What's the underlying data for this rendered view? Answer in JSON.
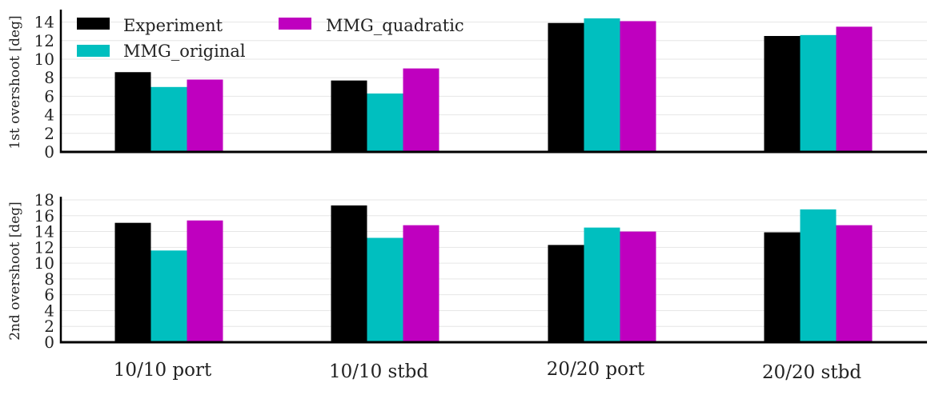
{
  "chart_data": [
    {
      "type": "bar",
      "categories": [
        "10/10 port",
        "10/10 stbd",
        "20/20 port",
        "20/20 stbd"
      ],
      "ylabel": "1st overshoot [deg]",
      "ylim": [
        0,
        15
      ],
      "yticks": [
        0,
        2,
        4,
        6,
        8,
        10,
        12,
        14
      ],
      "grid": true,
      "legend": "top-left",
      "series": [
        {
          "name": "Experiment",
          "color": "#000000",
          "values": [
            8.6,
            7.7,
            13.9,
            12.5
          ]
        },
        {
          "name": "MMG_original",
          "color": "#00bfbf",
          "values": [
            7.0,
            6.3,
            14.4,
            12.6
          ]
        },
        {
          "name": "MMG_quadratic",
          "color": "#bf00bf",
          "values": [
            7.8,
            9.0,
            14.1,
            13.5
          ]
        }
      ]
    },
    {
      "type": "bar",
      "categories": [
        "10/10 port",
        "10/10 stbd",
        "20/20 port",
        "20/20 stbd"
      ],
      "ylabel": "2nd overshoot [deg]",
      "ylim": [
        0,
        18
      ],
      "yticks": [
        0,
        2,
        4,
        6,
        8,
        10,
        12,
        14,
        16,
        18
      ],
      "grid": true,
      "series": [
        {
          "name": "Experiment",
          "color": "#000000",
          "values": [
            15.1,
            17.3,
            12.3,
            13.9
          ]
        },
        {
          "name": "MMG_original",
          "color": "#00bfbf",
          "values": [
            11.6,
            13.2,
            14.5,
            16.8
          ]
        },
        {
          "name": "MMG_quadratic",
          "color": "#bf00bf",
          "values": [
            15.4,
            14.8,
            14.0,
            14.8
          ]
        }
      ]
    }
  ]
}
